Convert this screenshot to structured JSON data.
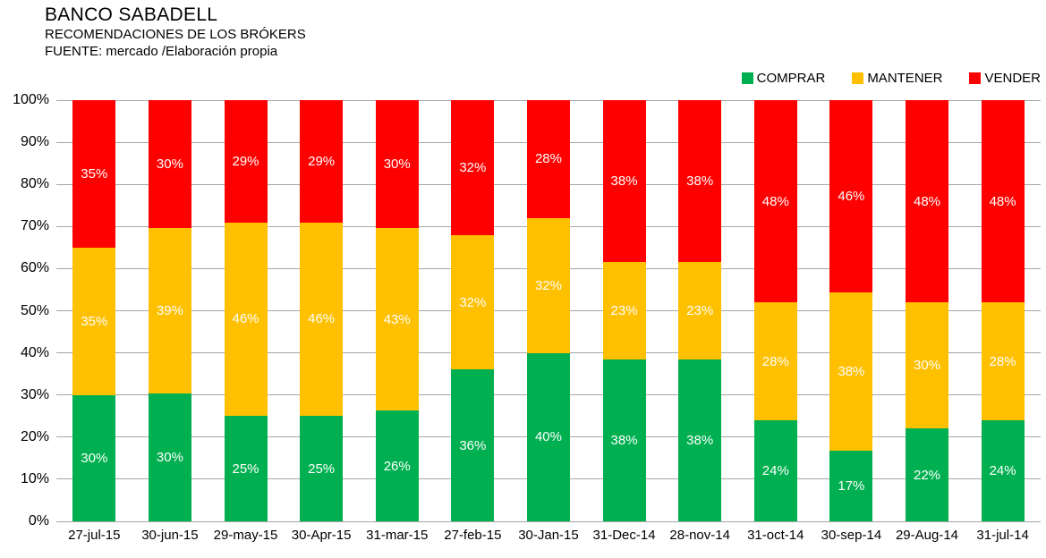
{
  "header": {
    "title": "BANCO SABADELL",
    "subtitle": "RECOMENDACIONES DE LOS BRÓKERS",
    "source": "FUENTE: mercado /Elaboración propia"
  },
  "legend": [
    {
      "label": "COMPRAR",
      "color": "#00B050"
    },
    {
      "label": "MANTENER",
      "color": "#FFC000"
    },
    {
      "label": "VENDER",
      "color": "#FF0000"
    }
  ],
  "chart_data": {
    "type": "bar",
    "stacked": true,
    "stacked_to_100_percent": true,
    "title": "BANCO SABADELL — RECOMENDACIONES DE LOS BRÓKERS",
    "xlabel": "",
    "ylabel": "",
    "ylim": [
      0,
      100
    ],
    "y_tick_labels": [
      "0%",
      "10%",
      "20%",
      "30%",
      "40%",
      "50%",
      "60%",
      "70%",
      "80%",
      "90%",
      "100%"
    ],
    "grid": true,
    "legend_position": "top-right",
    "data_labels": "percent-on-segments",
    "data_label_color": "#FFFFFF",
    "categories": [
      "27-jul-15",
      "30-jun-15",
      "29-may-15",
      "30-Apr-15",
      "31-mar-15",
      "27-feb-15",
      "30-Jan-15",
      "31-Dec-14",
      "28-nov-14",
      "31-oct-14",
      "30-sep-14",
      "29-Aug-14",
      "31-jul-14"
    ],
    "series": [
      {
        "name": "COMPRAR",
        "color": "#00B050",
        "values": [
          30,
          30,
          25,
          25,
          26,
          36,
          40,
          38,
          38,
          24,
          17,
          22,
          24
        ]
      },
      {
        "name": "MANTENER",
        "color": "#FFC000",
        "values": [
          35,
          39,
          46,
          46,
          43,
          32,
          32,
          23,
          23,
          28,
          38,
          30,
          28
        ]
      },
      {
        "name": "VENDER",
        "color": "#FF0000",
        "values": [
          35,
          30,
          29,
          29,
          30,
          32,
          28,
          38,
          38,
          48,
          46,
          48,
          48
        ]
      }
    ]
  },
  "colors": {
    "gridline": "#A6A6A6",
    "axis_text": "#000000",
    "background": "#FFFFFF"
  }
}
